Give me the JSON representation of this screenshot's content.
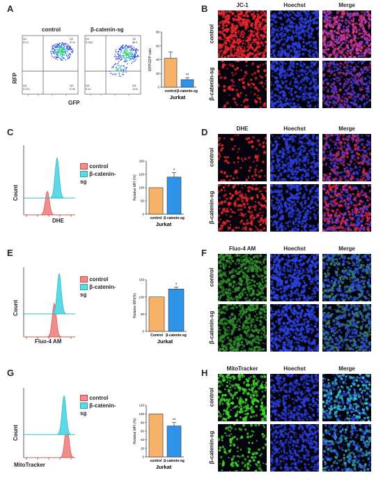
{
  "panels": {
    "A": {
      "letter": "A",
      "flow_titles": [
        "control",
        "β-catenin-sg"
      ],
      "ylabel": "RFP",
      "xlabel": "GFP",
      "quadrants": {
        "control": {
          "q1": "Q1",
          "q1v": "97.6",
          "q2": "Q2",
          "q2v": "97.6",
          "q3": "Q3",
          "q3v": "0.05",
          "q4": "Q4",
          "q4v": "0.071"
        },
        "sg": {
          "q1": "Q1",
          "q1v": "0.324",
          "q2": "Q2",
          "q2v": "86.1",
          "q3": "Q3",
          "q3v": "13.6",
          "q4": "Q4",
          "q4v": "0.11"
        }
      },
      "bar": {
        "ylabel": "RFP/GFP ratio",
        "cats": [
          "control",
          "β-catenin-sg"
        ],
        "group": "Jurkat",
        "sig": "**",
        "yticks": [
          "0",
          "20",
          "40",
          "60",
          "80"
        ]
      }
    },
    "B": {
      "letter": "B",
      "cols": [
        "JC-1",
        "Hoechst",
        "Merge"
      ],
      "rows": [
        "control",
        "β-catenin-sg"
      ]
    },
    "C": {
      "letter": "C",
      "legend": [
        "control",
        "β-catenin-sg"
      ],
      "ylabel": "Count",
      "xlabel": "DHE",
      "bar": {
        "ylabel": "Relative MFI (%)",
        "cats": [
          "control",
          "β-catenin-sg"
        ],
        "group": "Jurkat",
        "sig": "*",
        "yticks": [
          "0",
          "50",
          "100",
          "150",
          "200"
        ]
      }
    },
    "D": {
      "letter": "D",
      "cols": [
        "DHE",
        "Hoechst",
        "Merge"
      ],
      "rows": [
        "control",
        "β-catenin-sg"
      ]
    },
    "E": {
      "letter": "E",
      "legend": [
        "control",
        "β-catenin-sg"
      ],
      "ylabel": "Count",
      "xlabel": "Fluo-4 AM",
      "bar": {
        "ylabel": "Relative MFI(%)",
        "cats": [
          "Control",
          "β-catenin-sg"
        ],
        "group": "Jurkat",
        "sig": "*",
        "yticks": [
          "0",
          "50",
          "100",
          "150"
        ]
      }
    },
    "F": {
      "letter": "F",
      "cols": [
        "Fluo-4 AM",
        "Hoechst",
        "Merge"
      ],
      "rows": [
        "control",
        "β-catenin-sg"
      ]
    },
    "G": {
      "letter": "G",
      "legend": [
        "control",
        "β-catenin-sg"
      ],
      "ylabel": "Count",
      "xlabel": "MitoTracker",
      "bar": {
        "ylabel": "Relative MFI (%)",
        "cats": [
          "control",
          "β-catenin-sg"
        ],
        "group": "Jurkat",
        "sig": "**",
        "yticks": [
          "0",
          "20",
          "40",
          "60",
          "80",
          "100",
          "120"
        ]
      }
    },
    "H": {
      "letter": "H",
      "cols": [
        "MitoTracker",
        "Hoechst",
        "Merge"
      ],
      "rows": [
        "control",
        "β-catenin-sg"
      ]
    }
  },
  "colors": {
    "control": "#f7b168",
    "sg": "#2f93e8",
    "hist_control": "#f08c8c",
    "hist_sg": "#5ed7e6"
  },
  "chart_data": [
    {
      "type": "bar",
      "title": "",
      "xlabel": "Jurkat",
      "ylabel": "RFP/GFP ratio",
      "categories": [
        "control",
        "β-catenin-sg"
      ],
      "values": [
        42,
        11
      ],
      "errors": [
        9,
        3
      ],
      "ylim": [
        0,
        80
      ]
    },
    {
      "type": "bar",
      "title": "",
      "xlabel": "Jurkat",
      "ylabel": "Relative MFI (%)",
      "categories": [
        "control",
        "β-catenin-sg"
      ],
      "values": [
        100,
        140
      ],
      "errors": [
        0,
        17
      ],
      "ylim": [
        0,
        200
      ]
    },
    {
      "type": "bar",
      "title": "",
      "xlabel": "Jurkat",
      "ylabel": "Relative MFI(%)",
      "categories": [
        "Control",
        "β-catenin-sg"
      ],
      "values": [
        100,
        123
      ],
      "errors": [
        0,
        6
      ],
      "ylim": [
        0,
        150
      ]
    },
    {
      "type": "bar",
      "title": "",
      "xlabel": "Jurkat",
      "ylabel": "Relative MFI (%)",
      "categories": [
        "control",
        "β-catenin-sg"
      ],
      "values": [
        100,
        72
      ],
      "errors": [
        0,
        8
      ],
      "ylim": [
        0,
        120
      ]
    }
  ]
}
